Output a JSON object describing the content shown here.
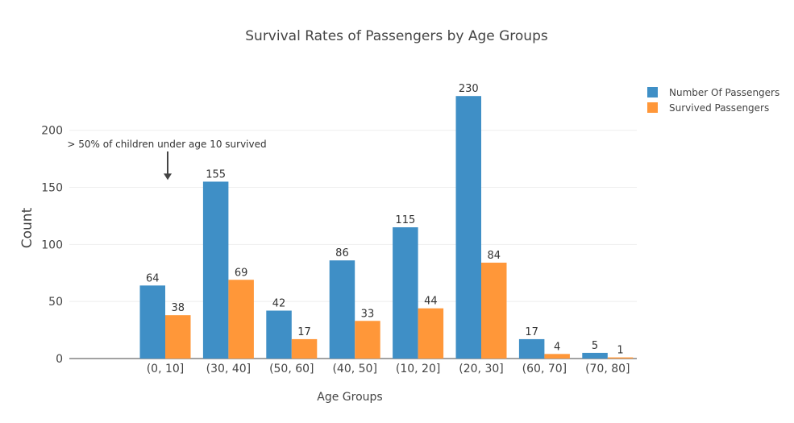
{
  "chart_data": {
    "type": "bar",
    "title": "Survival Rates of Passengers by Age Groups",
    "xlabel": "Age Groups",
    "ylabel": "Count",
    "ylim": [
      0,
      245
    ],
    "yticks": [
      0,
      50,
      100,
      150,
      200
    ],
    "grid": true,
    "legend_position": "top-right",
    "categories": [
      "(0, 10]",
      "(30, 40]",
      "(50, 60]",
      "(40, 50]",
      "(10, 20]",
      "(20, 30]",
      "(60, 70]",
      "(70, 80]"
    ],
    "series": [
      {
        "name": "Number Of Passengers",
        "color": "#3f8fc6",
        "values": [
          64,
          155,
          42,
          86,
          115,
          230,
          17,
          5
        ]
      },
      {
        "name": "Survived Passengers",
        "color": "#ff9739",
        "values": [
          38,
          69,
          17,
          33,
          44,
          84,
          4,
          1
        ]
      }
    ],
    "annotations": [
      {
        "text": "> 50% of children under age 10 survived",
        "category": "(0, 10]",
        "value": 160
      }
    ]
  }
}
